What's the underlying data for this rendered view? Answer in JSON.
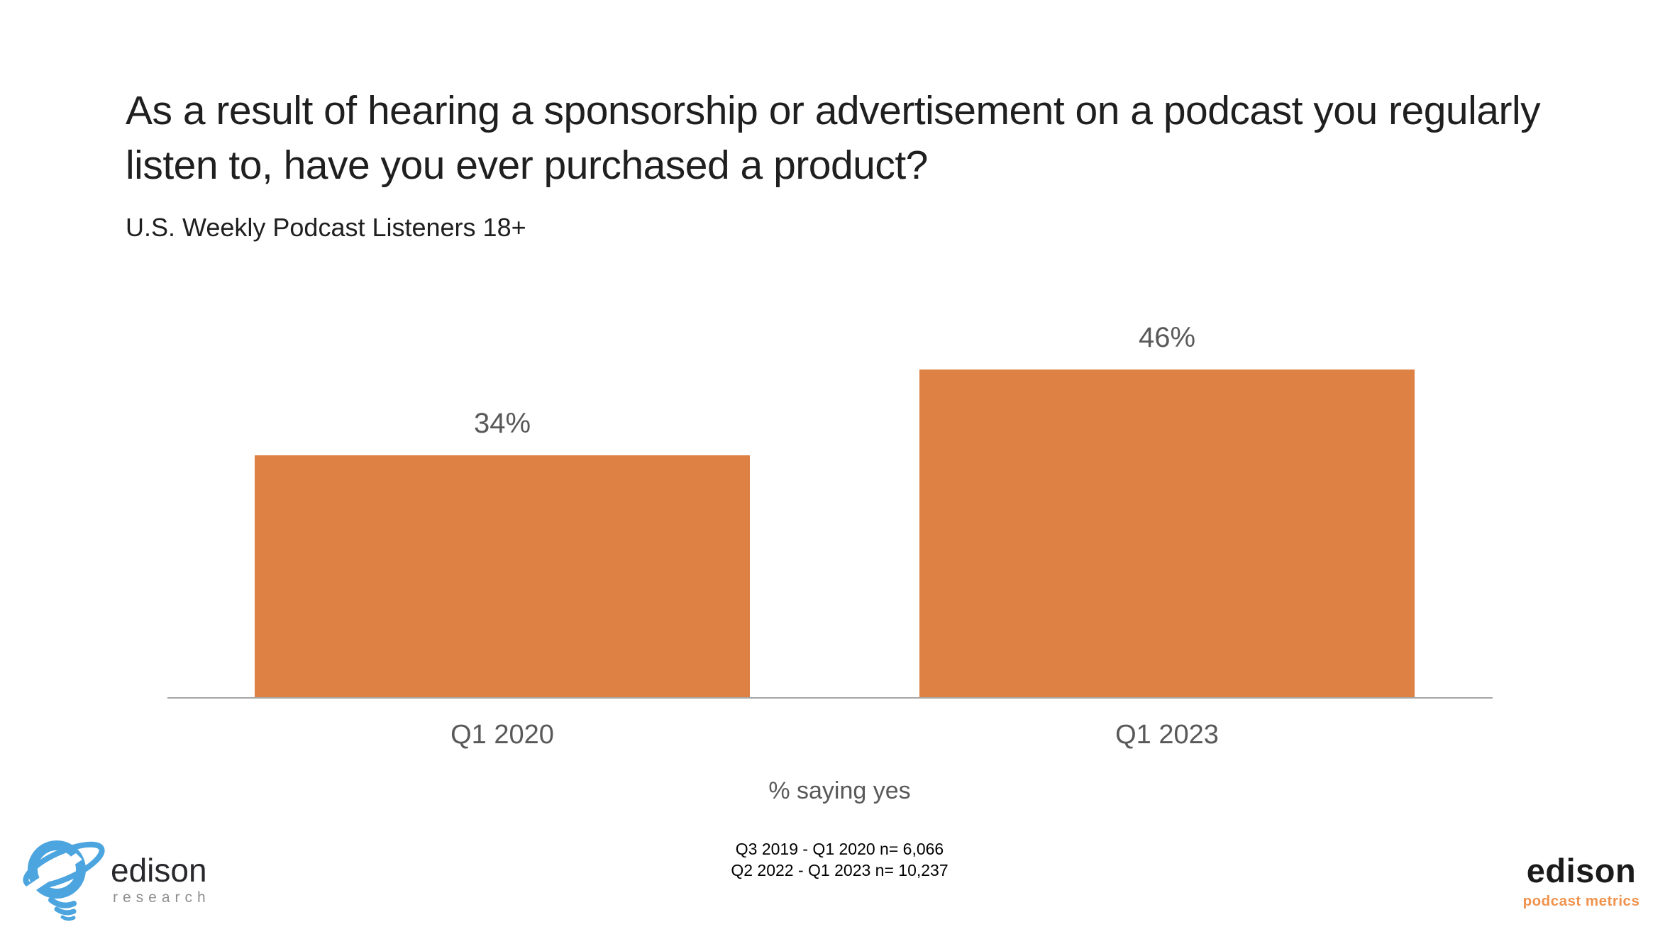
{
  "slide": {
    "title": "As a result of hearing a sponsorship or advertisement on a podcast you regularly listen to, have you ever purchased a product?",
    "subtitle": "U.S. Weekly Podcast Listeners 18+"
  },
  "chart_data": {
    "type": "bar",
    "title": "As a result of hearing a sponsorship or advertisement on a podcast you regularly listen to, have you ever purchased a product?",
    "subtitle": "U.S. Weekly Podcast Listeners 18+",
    "categories": [
      "Q1 2020",
      "Q1 2023"
    ],
    "values": [
      34,
      46
    ],
    "bars": [
      {
        "category": "Q1 2020",
        "value": 34,
        "label": "34%"
      },
      {
        "category": "Q1 2023",
        "value": 46,
        "label": "46%"
      }
    ],
    "xlabel": "% saying yes",
    "ylabel": "",
    "unit": "percent",
    "ylim": [
      0,
      50
    ],
    "grid": false,
    "legend": false,
    "data_labels": true,
    "bar_color": "#DD8244",
    "value_label_color": "#595959",
    "axis_line_color": "#A6A6A6"
  },
  "footnote": {
    "line1": "Q3 2019 - Q1 2020 n= 6,066",
    "line2": "Q2 2022 - Q1 2023 n= 10,237"
  },
  "branding": {
    "left_logo": {
      "name": "edison",
      "tagline": "research",
      "blue": "#4CA5DF"
    },
    "right_logo": {
      "name": "edison",
      "tagline": "podcast metrics",
      "orange": "#F0924C"
    }
  }
}
